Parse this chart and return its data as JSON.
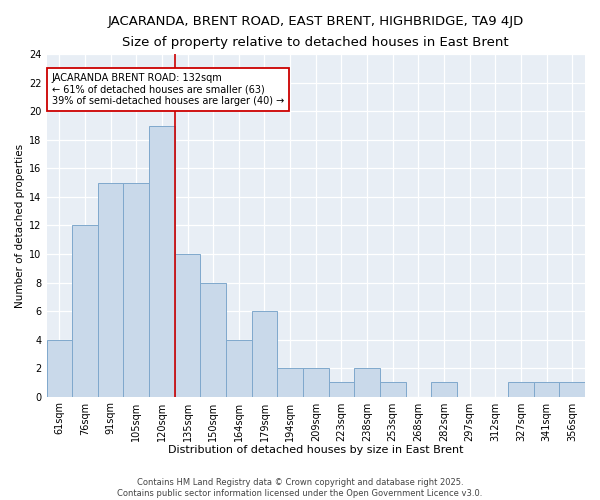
{
  "title1": "JACARANDA, BRENT ROAD, EAST BRENT, HIGHBRIDGE, TA9 4JD",
  "title2": "Size of property relative to detached houses in East Brent",
  "xlabel": "Distribution of detached houses by size in East Brent",
  "ylabel": "Number of detached properties",
  "categories": [
    "61sqm",
    "76sqm",
    "91sqm",
    "105sqm",
    "120sqm",
    "135sqm",
    "150sqm",
    "164sqm",
    "179sqm",
    "194sqm",
    "209sqm",
    "223sqm",
    "238sqm",
    "253sqm",
    "268sqm",
    "282sqm",
    "297sqm",
    "312sqm",
    "327sqm",
    "341sqm",
    "356sqm"
  ],
  "values": [
    4,
    12,
    15,
    15,
    19,
    10,
    8,
    4,
    6,
    2,
    2,
    1,
    2,
    1,
    0,
    1,
    0,
    0,
    1,
    1,
    1
  ],
  "bar_color": "#c9d9ea",
  "bar_edge_color": "#7fa8cc",
  "red_line_x": 4.5,
  "red_line_color": "#cc0000",
  "annotation_text": "JACARANDA BRENT ROAD: 132sqm\n← 61% of detached houses are smaller (63)\n39% of semi-detached houses are larger (40) →",
  "annotation_box_color": "white",
  "annotation_box_edge_color": "#cc0000",
  "ylim": [
    0,
    24
  ],
  "yticks": [
    0,
    2,
    4,
    6,
    8,
    10,
    12,
    14,
    16,
    18,
    20,
    22,
    24
  ],
  "bg_color": "#e8eef5",
  "grid_color": "#d0dae6",
  "footnote": "Contains HM Land Registry data © Crown copyright and database right 2025.\nContains public sector information licensed under the Open Government Licence v3.0.",
  "title1_fontsize": 9.5,
  "title2_fontsize": 8.5,
  "xlabel_fontsize": 8,
  "ylabel_fontsize": 7.5,
  "tick_fontsize": 7,
  "annotation_fontsize": 7,
  "footnote_fontsize": 6
}
